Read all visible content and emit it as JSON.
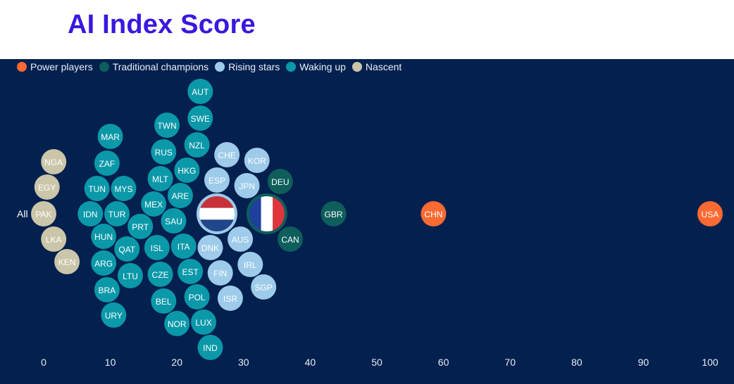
{
  "page": {
    "title": "AI Index Score"
  },
  "chart_data": {
    "type": "scatter",
    "title": "AI Index Score",
    "row_label": "All",
    "xlim": [
      0,
      100
    ],
    "x_ticks": [
      0,
      10,
      20,
      30,
      40,
      50,
      60,
      70,
      80,
      90,
      100
    ],
    "legend_position": "top-left",
    "groups": [
      {
        "key": "power",
        "name": "Power players",
        "color": "#fa6a32"
      },
      {
        "key": "traditional",
        "name": "Traditional champions",
        "color": "#0e5e5c"
      },
      {
        "key": "rising",
        "name": "Rising stars",
        "color": "#9ecbea"
      },
      {
        "key": "waking",
        "name": "Waking up",
        "color": "#0b98a8"
      },
      {
        "key": "nascent",
        "name": "Nascent",
        "color": "#cbc5a9"
      }
    ],
    "points": [
      {
        "label": "USA",
        "x": 100,
        "group": "power"
      },
      {
        "label": "CHN",
        "x": 58.5,
        "group": "power"
      },
      {
        "label": "GBR",
        "x": 43.5,
        "group": "traditional"
      },
      {
        "label": "CAN",
        "x": 37,
        "group": "traditional"
      },
      {
        "label": "DEU",
        "x": 35.5,
        "group": "traditional"
      },
      {
        "label": "FRA",
        "x": 33.5,
        "group": "traditional",
        "flag": "france"
      },
      {
        "label": "JPN",
        "x": 30.5,
        "group": "rising"
      },
      {
        "label": "KOR",
        "x": 32,
        "group": "rising"
      },
      {
        "label": "SGP",
        "x": 33,
        "group": "rising"
      },
      {
        "label": "CHE",
        "x": 27.5,
        "group": "rising"
      },
      {
        "label": "DNK",
        "x": 25,
        "group": "rising"
      },
      {
        "label": "ESP",
        "x": 26,
        "group": "rising"
      },
      {
        "label": "ISR",
        "x": 28,
        "group": "rising"
      },
      {
        "label": "IRL",
        "x": 31,
        "group": "rising"
      },
      {
        "label": "AUS",
        "x": 29.5,
        "group": "rising"
      },
      {
        "label": "FIN",
        "x": 26.5,
        "group": "rising"
      },
      {
        "label": "NLD",
        "x": 26,
        "group": "rising",
        "flag": "netherlands"
      },
      {
        "label": "NZL",
        "x": 23,
        "group": "waking"
      },
      {
        "label": "SWE",
        "x": 23.5,
        "group": "waking"
      },
      {
        "label": "EST",
        "x": 22,
        "group": "waking"
      },
      {
        "label": "IND",
        "x": 25,
        "group": "waking"
      },
      {
        "label": "POL",
        "x": 23,
        "group": "waking"
      },
      {
        "label": "LUX",
        "x": 24,
        "group": "waking"
      },
      {
        "label": "HKG",
        "x": 21.5,
        "group": "waking"
      },
      {
        "label": "ARE",
        "x": 20.5,
        "group": "waking"
      },
      {
        "label": "AUT",
        "x": 23.5,
        "group": "waking"
      },
      {
        "label": "ISL",
        "x": 17,
        "group": "waking"
      },
      {
        "label": "RUS",
        "x": 18,
        "group": "waking"
      },
      {
        "label": "ITA",
        "x": 21,
        "group": "waking"
      },
      {
        "label": "TWN",
        "x": 18.5,
        "group": "waking"
      },
      {
        "label": "NOR",
        "x": 20,
        "group": "waking"
      },
      {
        "label": "BEL",
        "x": 18,
        "group": "waking"
      },
      {
        "label": "SAU",
        "x": 19.5,
        "group": "waking"
      },
      {
        "label": "MLT",
        "x": 17.5,
        "group": "waking"
      },
      {
        "label": "CZE",
        "x": 17.5,
        "group": "waking"
      },
      {
        "label": "MEX",
        "x": 16.5,
        "group": "waking"
      },
      {
        "label": "PRT",
        "x": 14.5,
        "group": "waking"
      },
      {
        "label": "LTU",
        "x": 13,
        "group": "waking"
      },
      {
        "label": "QAT",
        "x": 12.5,
        "group": "waking"
      },
      {
        "label": "MYS",
        "x": 12,
        "group": "waking"
      },
      {
        "label": "TUR",
        "x": 11,
        "group": "waking"
      },
      {
        "label": "TUN",
        "x": 8,
        "group": "waking"
      },
      {
        "label": "ZAF",
        "x": 9.5,
        "group": "waking"
      },
      {
        "label": "URY",
        "x": 10.5,
        "group": "waking"
      },
      {
        "label": "IDN",
        "x": 7,
        "group": "waking"
      },
      {
        "label": "MAR",
        "x": 10,
        "group": "waking"
      },
      {
        "label": "HUN",
        "x": 9,
        "group": "waking"
      },
      {
        "label": "BRA",
        "x": 9.5,
        "group": "waking"
      },
      {
        "label": "ARG",
        "x": 9,
        "group": "waking"
      },
      {
        "label": "PAK",
        "x": 0,
        "group": "nascent"
      },
      {
        "label": "LKA",
        "x": 1.5,
        "group": "nascent"
      },
      {
        "label": "KEN",
        "x": 3.5,
        "group": "nascent"
      },
      {
        "label": "NGA",
        "x": 1.5,
        "group": "nascent"
      },
      {
        "label": "EGY",
        "x": 0.5,
        "group": "nascent"
      }
    ]
  }
}
